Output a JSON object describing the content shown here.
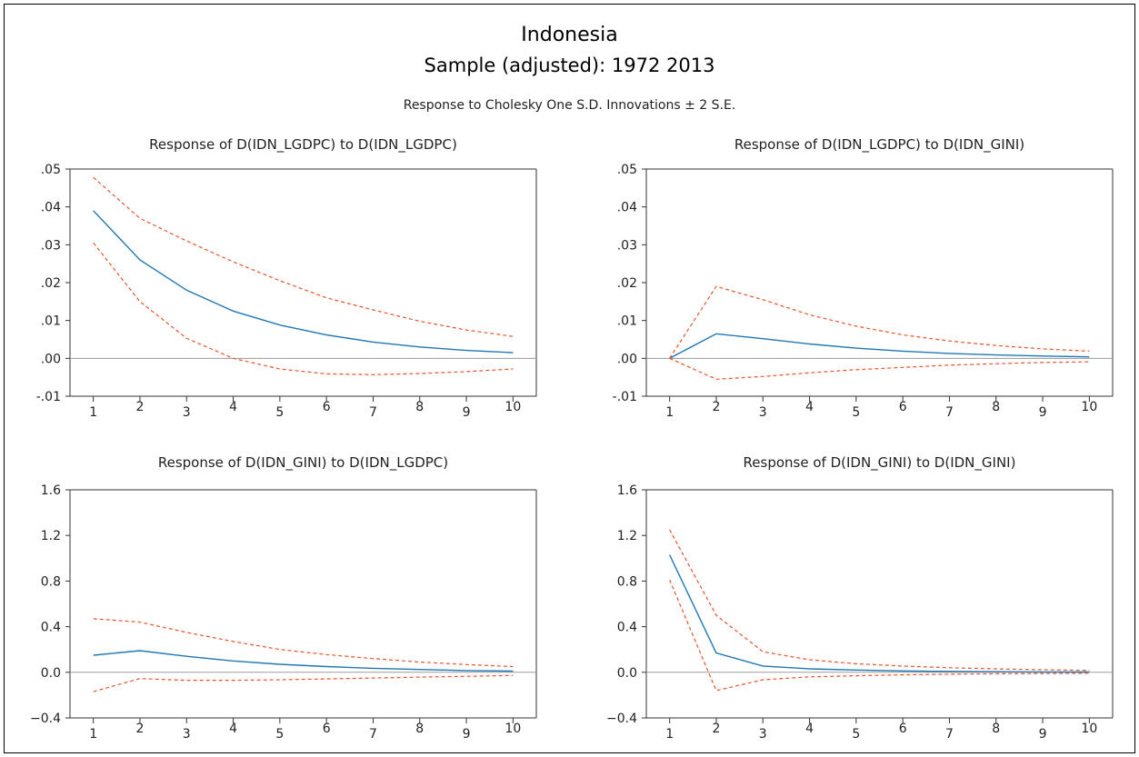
{
  "title": "Indonesia",
  "subtitle": "Sample (adjusted): 1972 2013",
  "caption": "Response to Cholesky One S.D. Innovations ± 2 S.E.",
  "colors": {
    "response": "#1f77b4",
    "bands": "#e8552d",
    "zero_line": "#9a9a9a",
    "axes": "#333333"
  },
  "chart_data": [
    {
      "type": "line",
      "title": "Response of D(IDN_LGDPC) to D(IDN_LGDPC)",
      "x": [
        1,
        2,
        3,
        4,
        5,
        6,
        7,
        8,
        9,
        10
      ],
      "ylim": [
        -0.01,
        0.05
      ],
      "yticks": [
        ".05",
        ".04",
        ".03",
        ".02",
        ".01",
        ".00",
        "-.01"
      ],
      "ytick_values": [
        0.05,
        0.04,
        0.03,
        0.02,
        0.01,
        0.0,
        -0.01
      ],
      "series": [
        {
          "role": "response",
          "values": [
            0.039,
            0.026,
            0.018,
            0.0125,
            0.0088,
            0.0062,
            0.0043,
            0.003,
            0.0021,
            0.0015
          ]
        },
        {
          "role": "upper",
          "values": [
            0.0478,
            0.037,
            0.031,
            0.0255,
            0.0205,
            0.016,
            0.0128,
            0.0098,
            0.0075,
            0.0058
          ]
        },
        {
          "role": "lower",
          "values": [
            0.0305,
            0.015,
            0.0053,
            0.0,
            -0.0028,
            -0.0041,
            -0.0043,
            -0.004,
            -0.0035,
            -0.0028
          ]
        }
      ]
    },
    {
      "type": "line",
      "title": "Response of D(IDN_LGDPC) to D(IDN_GINI)",
      "x": [
        1,
        2,
        3,
        4,
        5,
        6,
        7,
        8,
        9,
        10
      ],
      "ylim": [
        -0.01,
        0.05
      ],
      "yticks": [
        ".05",
        ".04",
        ".03",
        ".02",
        ".01",
        ".00",
        "-.01"
      ],
      "ytick_values": [
        0.05,
        0.04,
        0.03,
        0.02,
        0.01,
        0.0,
        -0.01
      ],
      "series": [
        {
          "role": "response",
          "values": [
            0.0,
            0.0065,
            0.0052,
            0.0038,
            0.0027,
            0.0019,
            0.0013,
            0.0009,
            0.0006,
            0.0004
          ]
        },
        {
          "role": "upper",
          "values": [
            0.0,
            0.019,
            0.0155,
            0.0115,
            0.0085,
            0.0062,
            0.0046,
            0.0034,
            0.0025,
            0.0019
          ]
        },
        {
          "role": "lower",
          "values": [
            0.0,
            -0.0055,
            -0.0048,
            -0.0038,
            -0.003,
            -0.0024,
            -0.0018,
            -0.0014,
            -0.0011,
            -0.0009
          ]
        }
      ]
    },
    {
      "type": "line",
      "title": "Response of D(IDN_GINI) to D(IDN_LGDPC)",
      "x": [
        1,
        2,
        3,
        4,
        5,
        6,
        7,
        8,
        9,
        10
      ],
      "ylim": [
        -0.4,
        1.6
      ],
      "yticks": [
        "1.6",
        "1.2",
        "0.8",
        "0.4",
        "0.0",
        "−0.4"
      ],
      "ytick_values": [
        1.6,
        1.2,
        0.8,
        0.4,
        0.0,
        -0.4
      ],
      "series": [
        {
          "role": "response",
          "values": [
            0.15,
            0.19,
            0.14,
            0.1,
            0.07,
            0.05,
            0.035,
            0.025,
            0.015,
            0.01
          ]
        },
        {
          "role": "upper",
          "values": [
            0.47,
            0.44,
            0.35,
            0.27,
            0.2,
            0.155,
            0.12,
            0.09,
            0.068,
            0.05
          ]
        },
        {
          "role": "lower",
          "values": [
            -0.17,
            -0.055,
            -0.07,
            -0.07,
            -0.065,
            -0.058,
            -0.05,
            -0.042,
            -0.035,
            -0.028
          ]
        }
      ]
    },
    {
      "type": "line",
      "title": "Response of D(IDN_GINI) to D(IDN_GINI)",
      "x": [
        1,
        2,
        3,
        4,
        5,
        6,
        7,
        8,
        9,
        10
      ],
      "ylim": [
        -0.4,
        1.6
      ],
      "yticks": [
        "1.6",
        "1.2",
        "0.8",
        "0.4",
        "0.0",
        "−0.4"
      ],
      "ytick_values": [
        1.6,
        1.2,
        0.8,
        0.4,
        0.0,
        -0.4
      ],
      "series": [
        {
          "role": "response",
          "values": [
            1.03,
            0.17,
            0.055,
            0.03,
            0.02,
            0.012,
            0.008,
            0.005,
            0.003,
            0.002
          ]
        },
        {
          "role": "upper",
          "values": [
            1.25,
            0.5,
            0.18,
            0.11,
            0.075,
            0.055,
            0.04,
            0.03,
            0.022,
            0.017
          ]
        },
        {
          "role": "lower",
          "values": [
            0.81,
            -0.16,
            -0.065,
            -0.04,
            -0.03,
            -0.022,
            -0.017,
            -0.013,
            -0.01,
            -0.008
          ]
        }
      ]
    }
  ]
}
